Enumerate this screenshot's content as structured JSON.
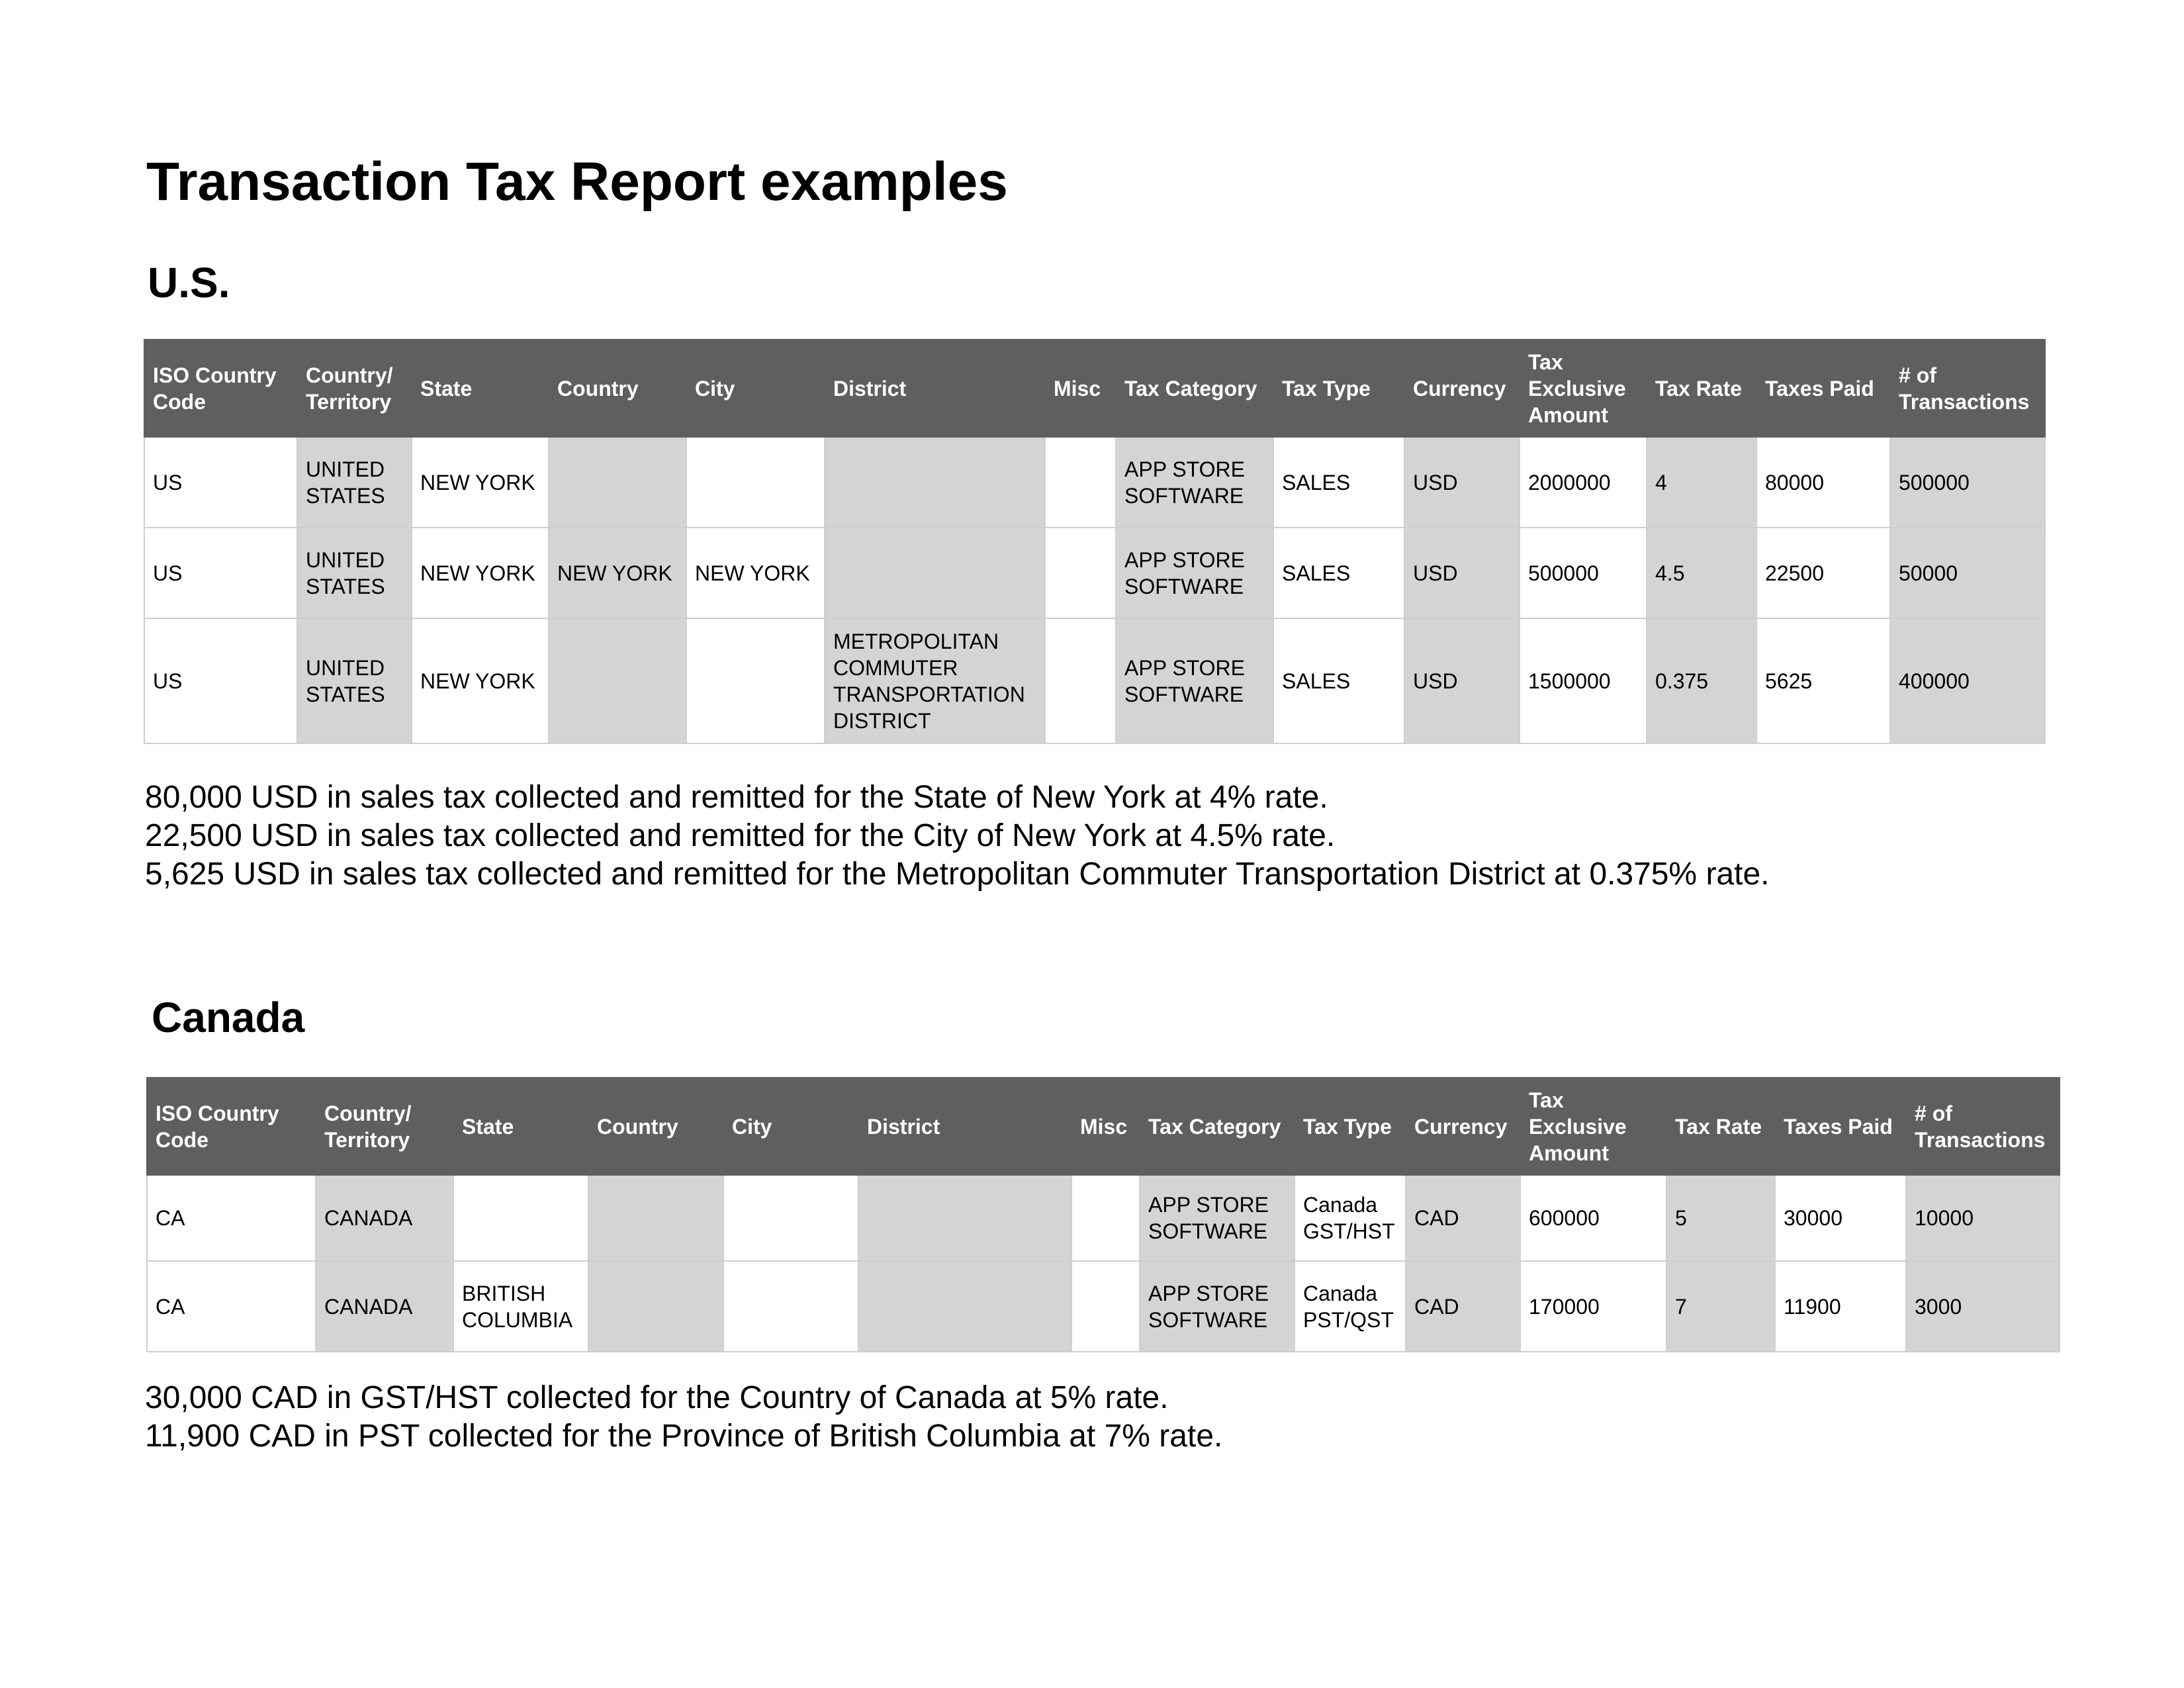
{
  "title": "Transaction Tax Report examples",
  "sections": [
    {
      "heading": "U.S.",
      "table": {
        "header": [
          "ISO Country Code",
          "Country/ Territory",
          "State",
          "Country",
          "City",
          "District",
          "Misc",
          "Tax Category",
          "Tax Type",
          "Currency",
          "Tax Exclusive Amount",
          "Tax Rate",
          "Taxes Paid",
          "# of Transactions"
        ],
        "rows": [
          [
            "US",
            "UNITED STATES",
            "NEW YORK",
            null,
            null,
            null,
            null,
            "APP STORE SOFTWARE",
            "SALES",
            "USD",
            2000000,
            4,
            80000,
            500000
          ],
          [
            "US",
            "UNITED STATES",
            "NEW YORK",
            "NEW YORK",
            "NEW YORK",
            null,
            null,
            "APP STORE SOFTWARE",
            "SALES",
            "USD",
            500000,
            4.5,
            22500,
            50000
          ],
          [
            "US",
            "UNITED STATES",
            "NEW YORK",
            null,
            null,
            "METROPOLITAN COMMUTER TRANSPORTATION DISTRICT",
            null,
            "APP STORE SOFTWARE",
            "SALES",
            "USD",
            1500000,
            0.375,
            5625,
            400000
          ]
        ]
      },
      "notes": [
        "80,000 USD in sales tax collected and remitted for the State of New York at 4% rate.",
        "22,500 USD in sales tax collected and remitted for the City of New York at 4.5% rate.",
        "5,625 USD in sales tax collected and remitted for the Metropolitan Commuter Transportation District at 0.375% rate."
      ]
    },
    {
      "heading": "Canada",
      "table": {
        "header": [
          "ISO Country Code",
          "Country/ Territory",
          "State",
          "Country",
          "City",
          "District",
          "Misc",
          "Tax Category",
          "Tax Type",
          "Currency",
          "Tax Exclusive Amount",
          "Tax Rate",
          "Taxes Paid",
          "# of Transactions"
        ],
        "rows": [
          [
            "CA",
            "CANADA",
            null,
            null,
            null,
            null,
            null,
            "APP STORE SOFTWARE",
            "Canada GST/HST",
            "CAD",
            600000,
            5,
            30000,
            10000
          ],
          [
            "CA",
            "CANADA",
            "BRITISH COLUMBIA",
            null,
            null,
            null,
            null,
            "APP STORE SOFTWARE",
            "Canada PST/QST",
            "CAD",
            170000,
            7,
            11900,
            3000
          ]
        ]
      },
      "notes": [
        "30,000 CAD in GST/HST collected for the Country of Canada at 5% rate.",
        "11,900 CAD in PST collected for the Province of British Columbia at 7% rate."
      ]
    }
  ]
}
